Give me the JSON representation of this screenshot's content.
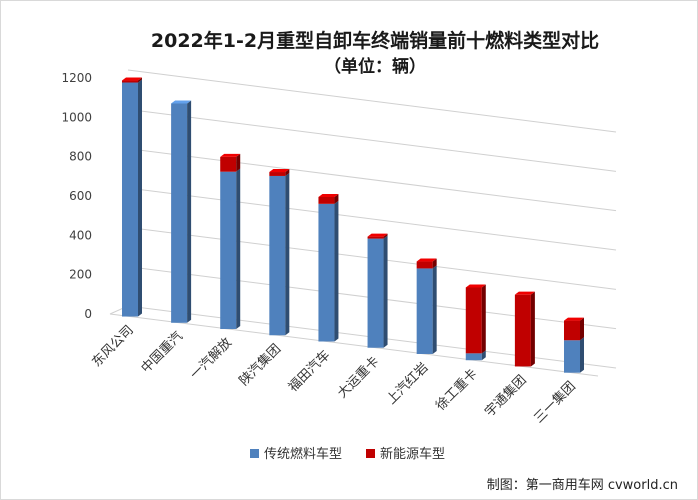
{
  "chart_data": {
    "type": "bar",
    "stacked": true,
    "three_d": true,
    "title": "2022年1-2月重型自卸车终端销量前十燃料类型对比",
    "subtitle": "（单位：辆）",
    "xlabel": "",
    "ylabel": "",
    "ylim": [
      0,
      1200
    ],
    "yticks": [
      "0",
      "200",
      "400",
      "600",
      "800",
      "1000",
      "1200"
    ],
    "grid": true,
    "legend_position": "bottom",
    "categories": [
      "东风公司",
      "中国重汽",
      "一汽解放",
      "陕汽集团",
      "福田汽车",
      "大运重卡",
      "上汽红岩",
      "徐工重卡",
      "宇通集团",
      "三一集团"
    ],
    "series": [
      {
        "name": "传统燃料车型",
        "color": "#4f81bd",
        "values": [
          1190,
          1115,
          800,
          810,
          700,
          555,
          435,
          35,
          0,
          165
        ]
      },
      {
        "name": "新能源车型",
        "color": "#c00000",
        "values": [
          10,
          0,
          75,
          20,
          35,
          10,
          35,
          335,
          365,
          100
        ]
      }
    ]
  },
  "credit": "制图：第一商用车网 cvworld.cn"
}
